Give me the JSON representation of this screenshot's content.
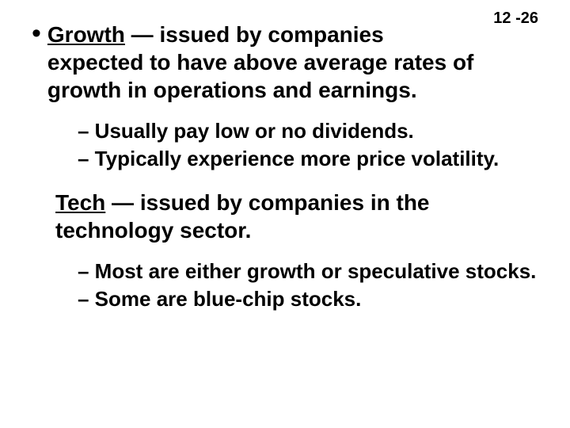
{
  "page_number": "12 -26",
  "section1": {
    "term": "Growth",
    "definition": " — issued by companies expected to have above average rates of growth in operations and earnings.",
    "subs": [
      "– Usually pay low or no dividends.",
      "– Typically experience more price volatility."
    ]
  },
  "section2": {
    "term": "Tech",
    "definition": " — issued by companies in the technology sector.",
    "subs": [
      "– Most are either growth or speculative stocks.",
      "– Some are blue-chip stocks."
    ]
  },
  "colors": {
    "background": "#ffffff",
    "text": "#000000"
  },
  "fonts": {
    "main_size": 28,
    "sub_size": 26,
    "pageno_size": 20,
    "weight": "bold"
  }
}
